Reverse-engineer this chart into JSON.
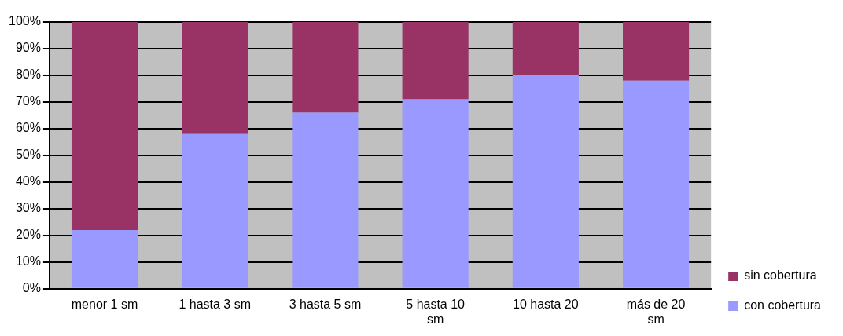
{
  "chart_data": {
    "type": "bar",
    "stacked": true,
    "categories": [
      "menor 1 sm",
      "1 hasta 3 sm",
      "3 hasta 5 sm",
      "5 hasta 10 sm",
      "10 hasta 20",
      "más de 20 sm"
    ],
    "series": [
      {
        "name": "con cobertura",
        "color": "#9999ff",
        "values": [
          22,
          58,
          66,
          71,
          80,
          78
        ]
      },
      {
        "name": "sin cobertura",
        "color": "#993366",
        "values": [
          78,
          42,
          34,
          29,
          20,
          22
        ]
      }
    ],
    "ylim": [
      0,
      100
    ],
    "yticks": [
      {
        "value": 0,
        "label": "0%"
      },
      {
        "value": 10,
        "label": "10%"
      },
      {
        "value": 20,
        "label": "20%"
      },
      {
        "value": 30,
        "label": "30%"
      },
      {
        "value": 40,
        "label": "40%"
      },
      {
        "value": 50,
        "label": "50%"
      },
      {
        "value": 60,
        "label": "60%"
      },
      {
        "value": 70,
        "label": "70%"
      },
      {
        "value": 80,
        "label": "80%"
      },
      {
        "value": 90,
        "label": "90%"
      },
      {
        "value": 100,
        "label": "100%"
      }
    ],
    "grid": "y",
    "legend": "right"
  }
}
